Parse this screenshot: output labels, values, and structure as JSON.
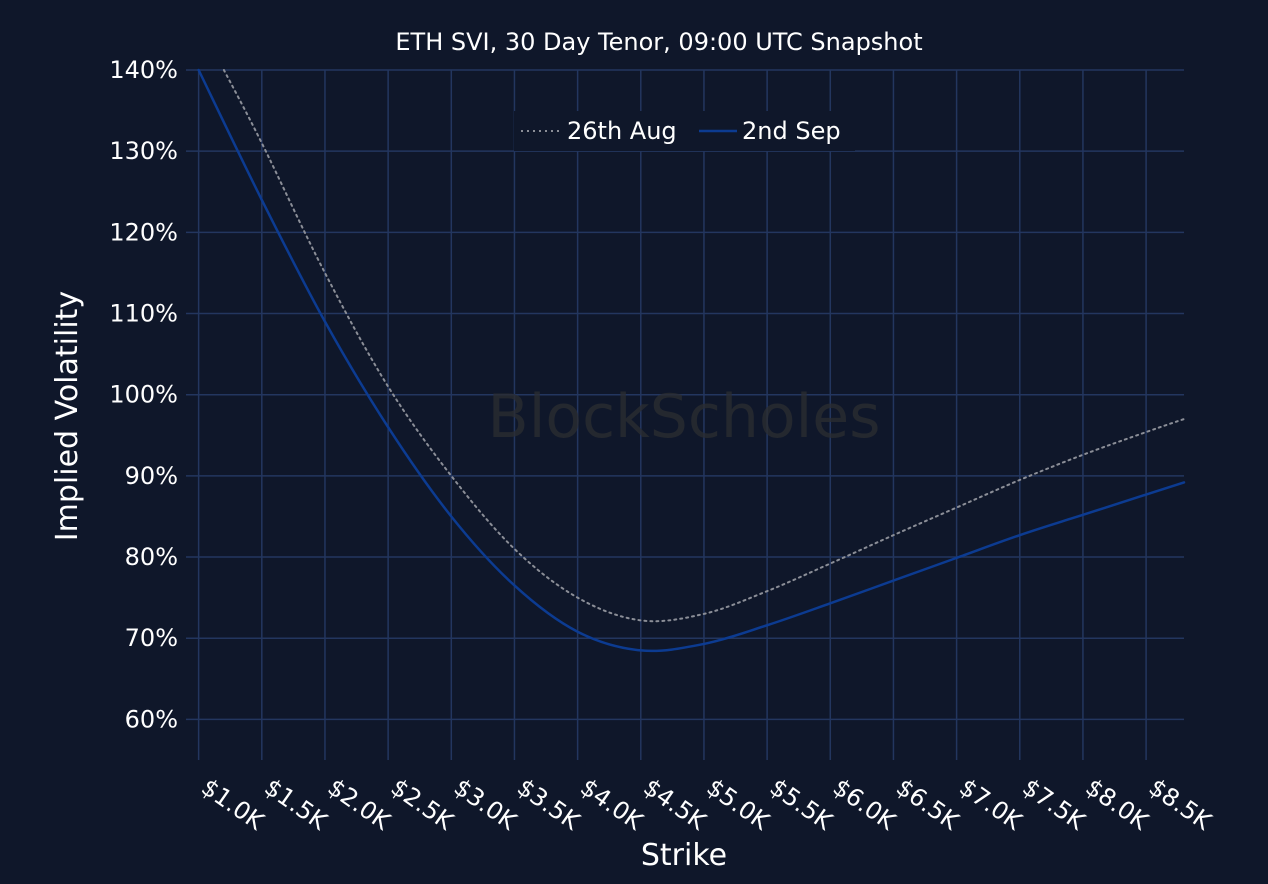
{
  "chart_data": {
    "type": "line",
    "title": "ETH SVI, 30 Day Tenor, 09:00 UTC Snapshot",
    "xlabel": "Strike",
    "ylabel": "Implied Volatility",
    "x_ticks": [
      "$1.0K",
      "$1.5K",
      "$2.0K",
      "$2.5K",
      "$3.0K",
      "$3.5K",
      "$4.0K",
      "$4.5K",
      "$5.0K",
      "$5.5K",
      "$6.0K",
      "$6.5K",
      "$7.0K",
      "$7.5K",
      "$8.0K",
      "$8.5K"
    ],
    "x_tick_values": [
      1000,
      1500,
      2000,
      2500,
      3000,
      3500,
      4000,
      4500,
      5000,
      5500,
      6000,
      6500,
      7000,
      7500,
      8000,
      8500
    ],
    "y_ticks": [
      "60%",
      "70%",
      "80%",
      "90%",
      "100%",
      "110%",
      "120%",
      "130%",
      "140%"
    ],
    "y_tick_values": [
      60,
      70,
      80,
      90,
      100,
      110,
      120,
      130,
      140
    ],
    "xlim": [
      900,
      8800
    ],
    "ylim": [
      55,
      140
    ],
    "grid": true,
    "legend_placement": "top-center",
    "watermark": "BlockScholes",
    "colors": {
      "background": "#0f172a",
      "grid": "#23365f",
      "text": "#ffffff",
      "watermark": "#2b2d31"
    },
    "series": [
      {
        "name": "26th Aug",
        "color": "#8b8e97",
        "dash": "dotted",
        "x": [
          1200,
          1500,
          2000,
          2500,
          3000,
          3500,
          4000,
          4500,
          5000,
          5500,
          6000,
          6500,
          7000,
          7500,
          8000,
          8500,
          8800
        ],
        "y": [
          140,
          131,
          115,
          101,
          90,
          81,
          75,
          72.2,
          73.0,
          75.8,
          79.2,
          82.7,
          86.1,
          89.5,
          92.6,
          95.4,
          97
        ]
      },
      {
        "name": "2nd Sep",
        "color": "#0c3b91",
        "dash": "solid",
        "x": [
          1000,
          1500,
          2000,
          2500,
          3000,
          3500,
          4000,
          4500,
          5000,
          5500,
          6000,
          6500,
          7000,
          7500,
          8000,
          8500,
          8800
        ],
        "y": [
          140,
          124,
          109,
          96,
          85,
          76.5,
          70.8,
          68.5,
          69.3,
          71.6,
          74.3,
          77.1,
          79.9,
          82.7,
          85.2,
          87.7,
          89.2
        ]
      }
    ]
  }
}
